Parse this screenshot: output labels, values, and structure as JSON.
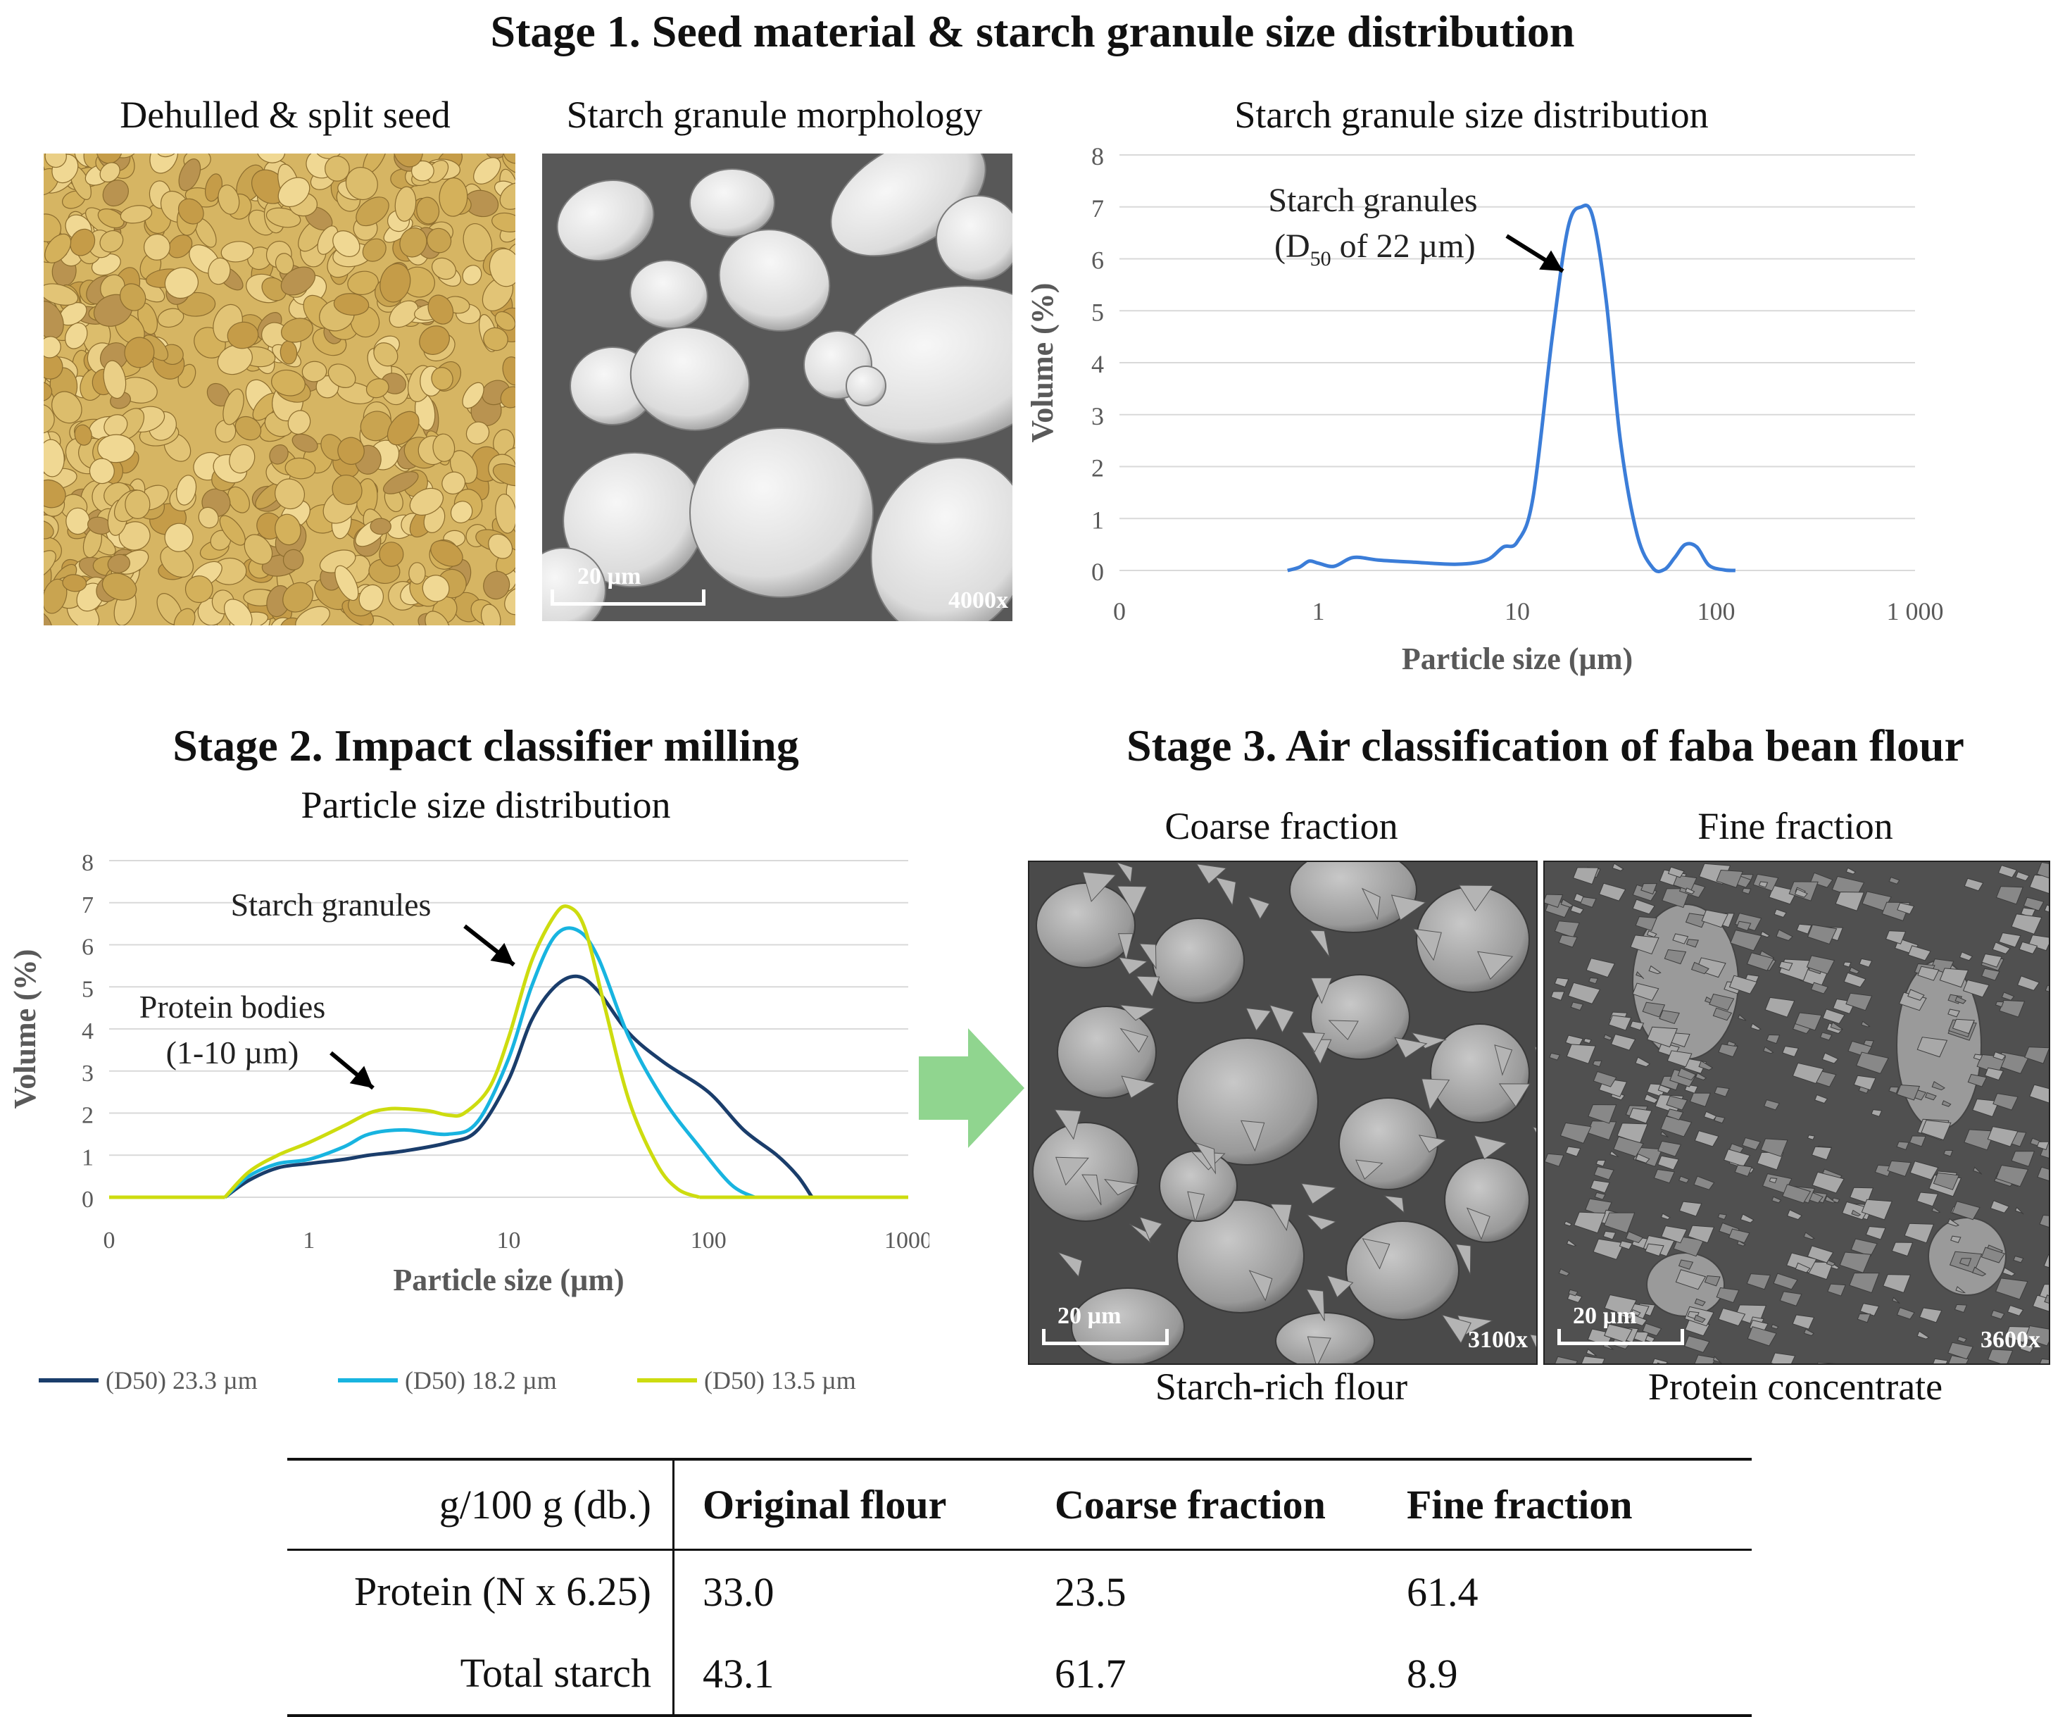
{
  "stage1": {
    "title": "Stage 1. Seed material & starch granule size distribution",
    "seed_label": "Dehulled & split seed",
    "morph_label": "Starch granule morphology",
    "dist_label": "Starch granule size distribution",
    "sem_scale": "20 µm",
    "sem_mag": "4000x"
  },
  "stage2": {
    "title": "Stage 2. Impact classifier milling",
    "subtitle": "Particle size distribution"
  },
  "stage3": {
    "title": "Stage 3. Air classification of faba bean flour",
    "coarse_label": "Coarse fraction",
    "fine_label": "Fine fraction",
    "coarse_caption": "Starch-rich flour",
    "fine_caption": "Protein concentrate",
    "coarse_scale": "20 µm",
    "coarse_mag": "3100x",
    "fine_scale": "20 µm",
    "fine_mag": "3600x"
  },
  "chart_data": [
    {
      "type": "line",
      "title": "Starch granule size distribution",
      "xlabel": "Particle size (µm)",
      "ylabel": "Volume (%)",
      "xscale": "log",
      "xticks": [
        "0",
        "1",
        "10",
        "100",
        "1 000"
      ],
      "yticks": [
        "0",
        "1",
        "2",
        "3",
        "4",
        "5",
        "6",
        "7",
        "8"
      ],
      "ylim": [
        0,
        8
      ],
      "annotation": "Starch granules",
      "annotation_d50": "(D",
      "annotation_sub": "50",
      "annotation_rest": " of 22 µm)",
      "color": "#3b7dd8",
      "series": [
        {
          "name": "Starch granules",
          "x": [
            0.7,
            0.8,
            0.9,
            1.0,
            1.2,
            1.5,
            2,
            3,
            5,
            7,
            8.5,
            10,
            12,
            15,
            18,
            21,
            24,
            28,
            33,
            40,
            48,
            55,
            62,
            70,
            80,
            92,
            110,
            125
          ],
          "y": [
            0,
            0.06,
            0.18,
            0.14,
            0.08,
            0.25,
            0.2,
            0.16,
            0.12,
            0.2,
            0.45,
            0.55,
            1.4,
            4.5,
            6.6,
            7.0,
            6.8,
            5.2,
            2.5,
            0.7,
            0.05,
            0.02,
            0.25,
            0.5,
            0.45,
            0.1,
            0.01,
            0
          ]
        }
      ]
    },
    {
      "type": "line",
      "title": "Particle size distribution",
      "xlabel": "Particle size (µm)",
      "ylabel": "Volume (%)",
      "xscale": "log",
      "xticks": [
        "0",
        "1",
        "10",
        "100",
        "1000"
      ],
      "yticks": [
        "0",
        "1",
        "2",
        "3",
        "4",
        "5",
        "6",
        "7",
        "8"
      ],
      "ylim": [
        0,
        8
      ],
      "annotations": [
        "Starch granules",
        "Protein bodies",
        "(1-10 µm)"
      ],
      "series": [
        {
          "name": "(D50) 23.3 µm",
          "color": "#1a3d6b",
          "x": [
            0.38,
            0.5,
            0.7,
            1,
            1.5,
            2,
            3,
            5,
            7,
            10,
            13,
            17,
            22,
            28,
            40,
            60,
            100,
            150,
            220,
            280,
            330
          ],
          "y": [
            0,
            0.4,
            0.7,
            0.8,
            0.9,
            1.0,
            1.1,
            1.3,
            1.6,
            2.8,
            4.2,
            5.0,
            5.25,
            4.9,
            3.9,
            3.2,
            2.5,
            1.6,
            1.0,
            0.5,
            0
          ]
        },
        {
          "name": "(D50) 18.2 µm",
          "color": "#18b4e0",
          "x": [
            0.38,
            0.5,
            0.7,
            1,
            1.5,
            2,
            3,
            5,
            7,
            10,
            13,
            17,
            22,
            28,
            40,
            60,
            90,
            130,
            170
          ],
          "y": [
            0,
            0.5,
            0.8,
            0.9,
            1.2,
            1.5,
            1.6,
            1.5,
            1.8,
            3.3,
            5.0,
            6.2,
            6.35,
            5.7,
            3.8,
            2.3,
            1.2,
            0.3,
            0
          ]
        },
        {
          "name": "(D50) 13.5 µm",
          "color": "#cddc0f",
          "x": [
            0.38,
            0.5,
            0.7,
            1,
            1.5,
            2,
            2.5,
            3,
            4,
            5,
            6,
            8,
            10,
            13,
            17,
            20,
            24,
            30,
            40,
            55,
            70,
            90
          ],
          "y": [
            0,
            0.6,
            1.0,
            1.3,
            1.7,
            2.0,
            2.1,
            2.1,
            2.05,
            1.95,
            2.0,
            2.6,
            3.8,
            5.6,
            6.7,
            6.9,
            6.4,
            4.6,
            2.3,
            0.8,
            0.2,
            0
          ]
        }
      ]
    }
  ],
  "table": {
    "headers": [
      "g/100 g (db.)",
      "Original flour",
      "Coarse fraction",
      "Fine fraction"
    ],
    "rows": [
      [
        "Protein (N x 6.25)",
        "33.0",
        "23.5",
        "61.4"
      ],
      [
        "Total starch",
        "43.1",
        "61.7",
        "8.9"
      ]
    ]
  },
  "colors": {
    "arrow": "#90d58f",
    "seed_bg": "#d9b866",
    "sem_bg": "#5a5a5a"
  }
}
